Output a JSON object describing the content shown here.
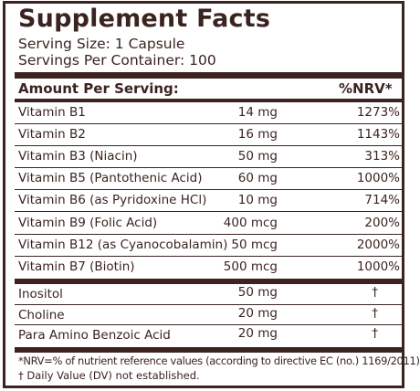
{
  "title": "Supplement Facts",
  "serving_size": "Serving Size: 1 Capsule",
  "servings_per_container": "Servings Per Container: 100",
  "header": {
    "amount": "Amount Per Serving:",
    "nrv": "%NRV*"
  },
  "vitamins": [
    {
      "name": "Vitamin B1",
      "amount": "14 mg",
      "nrv": "1273%"
    },
    {
      "name": "Vitamin B2",
      "amount": "16 mg",
      "nrv": "1143%"
    },
    {
      "name": "Vitamin B3 (Niacin)",
      "amount": "50 mg",
      "nrv": "313%"
    },
    {
      "name": "Vitamin B5 (Pantothenic Acid)",
      "amount": "60 mg",
      "nrv": "1000%"
    },
    {
      "name": "Vitamin B6 (as Pyridoxine HCl)",
      "amount": "10 mg",
      "nrv": "714%"
    },
    {
      "name": "Vitamin B9 (Folic Acid)",
      "amount": "400 mcg",
      "nrv": "200%"
    },
    {
      "name": "Vitamin B12 (as Cyanocobalamin)",
      "amount": "50 mcg",
      "nrv": "2000%"
    },
    {
      "name": "Vitamin B7 (Biotin)",
      "amount": "500 mcg",
      "nrv": "1000%"
    }
  ],
  "others": [
    {
      "name": "Inositol",
      "amount": "50 mg",
      "nrv": "†"
    },
    {
      "name": "Choline",
      "amount": "20 mg",
      "nrv": "†"
    },
    {
      "name": "Para Amino Benzoic Acid",
      "amount": "20 mg",
      "nrv": "†"
    }
  ],
  "footnotes": {
    "nrv": "*NRV=% of nutrient reference values (according to directive EC (no.) 1169/2011)",
    "dv": "† Daily Value (DV) not established."
  },
  "colors": {
    "ink": "#3b2420",
    "background": "#ffffff"
  }
}
